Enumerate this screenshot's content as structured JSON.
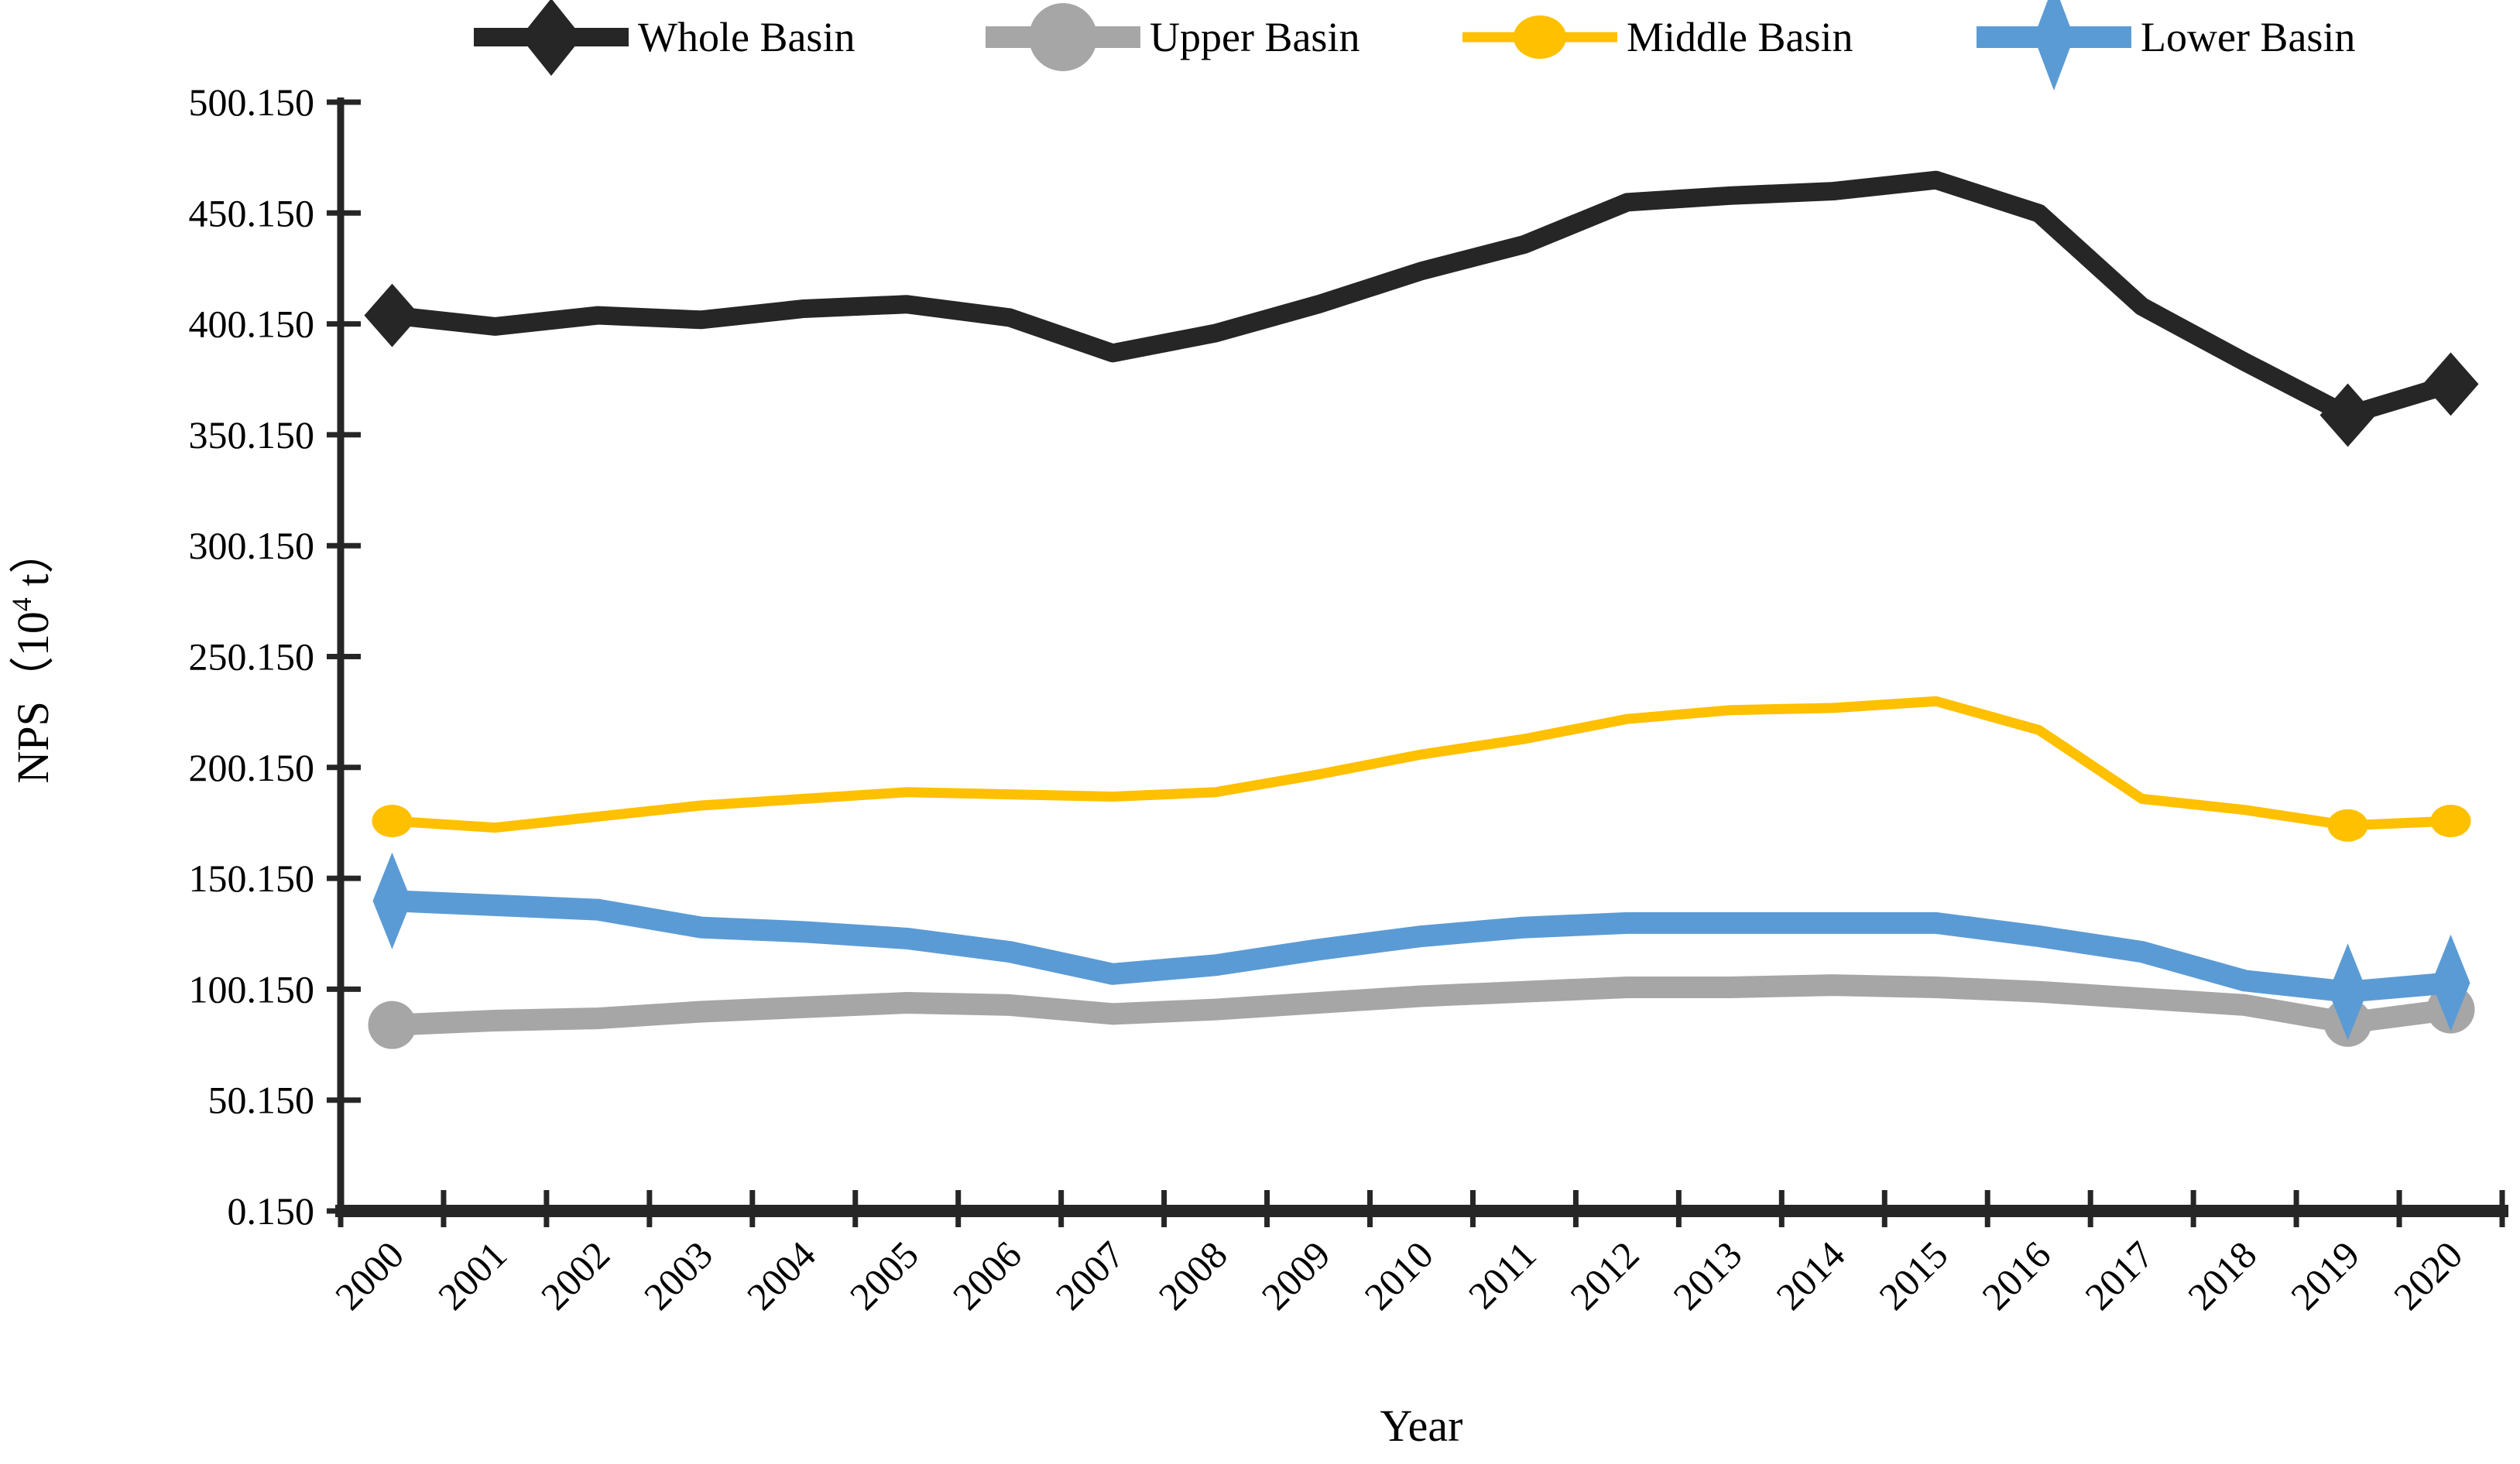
{
  "chart_data": {
    "type": "line",
    "title": "",
    "xlabel": "Year",
    "ylabel": {
      "pre": "NPS（10",
      "sup": "4",
      "post": " t）",
      "full_text": "NPS（10⁴ t）"
    },
    "x_categories": [
      "2000",
      "2001",
      "2002",
      "2003",
      "2004",
      "2005",
      "2006",
      "2007",
      "2008",
      "2009",
      "2010",
      "2011",
      "2012",
      "2013",
      "2014",
      "2015",
      "2016",
      "2017",
      "2018",
      "2019",
      "2020"
    ],
    "y_axis": {
      "min": 0.15,
      "max": 500.15,
      "step": 50,
      "tick_labels": [
        "0.150",
        "50.150",
        "100.150",
        "150.150",
        "200.150",
        "250.150",
        "300.150",
        "350.150",
        "400.150",
        "450.150",
        "500.150"
      ]
    },
    "grid": false,
    "legend_position": "top",
    "marker_years": [
      "2000",
      "2019",
      "2020"
    ],
    "series": [
      {
        "name": "Whole Basin",
        "color": "#262626",
        "marker": "diamond",
        "values": [
          404,
          399,
          404,
          402,
          407,
          409,
          403,
          387,
          396,
          409,
          424,
          436,
          455,
          458,
          460,
          465,
          450,
          408,
          383,
          359,
          373
        ]
      },
      {
        "name": "Upper Basin",
        "color": "#A6A6A6",
        "marker": "circle",
        "values": [
          84,
          86,
          87,
          90,
          92,
          94,
          93,
          89,
          91,
          94,
          97,
          99,
          101,
          101,
          102,
          101,
          99,
          96,
          93,
          85,
          91
        ]
      },
      {
        "name": "Middle Basin",
        "color": "#FFC000",
        "marker": "ellipse",
        "values": [
          176,
          173,
          178,
          183,
          186,
          189,
          188,
          187,
          189,
          197,
          206,
          213,
          222,
          226,
          227,
          230,
          217,
          186,
          181,
          174,
          176
        ]
      },
      {
        "name": "Lower Basin",
        "color": "#5B9BD5",
        "marker": "tall-diamond",
        "values": [
          140,
          138,
          136,
          128,
          126,
          123,
          117,
          107,
          111,
          118,
          124,
          128,
          130,
          130,
          130,
          130,
          124,
          117,
          104,
          99,
          103
        ]
      }
    ],
    "draw_order": [
      "Upper Basin",
      "Middle Basin",
      "Lower Basin",
      "Whole Basin"
    ]
  }
}
